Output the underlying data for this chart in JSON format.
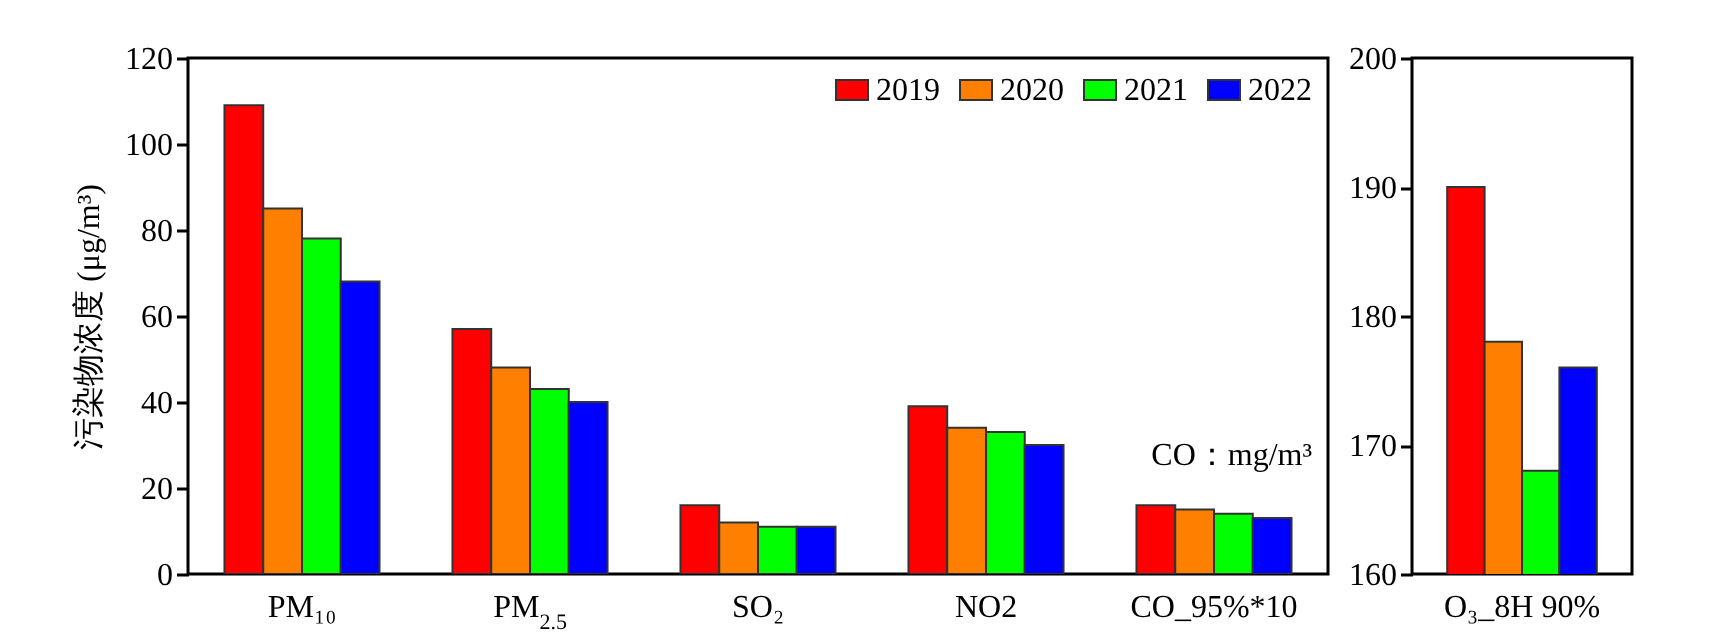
{
  "chart_data": [
    {
      "type": "bar",
      "ylabel": "污染物浓度 (μg/m³)",
      "categories": [
        "PM₁₀",
        "PM$_{2.5}$",
        "SO₂",
        "NO2",
        "CO_95%*10"
      ],
      "series": [
        {
          "name": "2019",
          "color": "#ff0000",
          "values": [
            109,
            57,
            16,
            39,
            16
          ]
        },
        {
          "name": "2020",
          "color": "#ff8000",
          "values": [
            85,
            48,
            12,
            34,
            15
          ]
        },
        {
          "name": "2021",
          "color": "#00ff00",
          "values": [
            78,
            43,
            11,
            33,
            14
          ]
        },
        {
          "name": "2022",
          "color": "#0000ff",
          "values": [
            68,
            40,
            11,
            30,
            13
          ]
        }
      ],
      "ylim": [
        0,
        120
      ],
      "yticks": [
        0,
        20,
        40,
        60,
        80,
        100,
        120
      ],
      "legend": "top right",
      "annotations": [
        "CO：mg/m³"
      ]
    },
    {
      "type": "bar",
      "categories": [
        "O₃_8H 90%"
      ],
      "series": [
        {
          "color": "#ff0000",
          "values": [
            190
          ]
        },
        {
          "color": "#ff8000",
          "values": [
            178
          ]
        },
        {
          "color": "#00ff00",
          "values": [
            168
          ]
        },
        {
          "color": "#0000ff",
          "values": [
            176
          ]
        }
      ],
      "ylim": [
        160,
        200
      ],
      "yticks": [
        160,
        170,
        180,
        190,
        200
      ]
    }
  ]
}
